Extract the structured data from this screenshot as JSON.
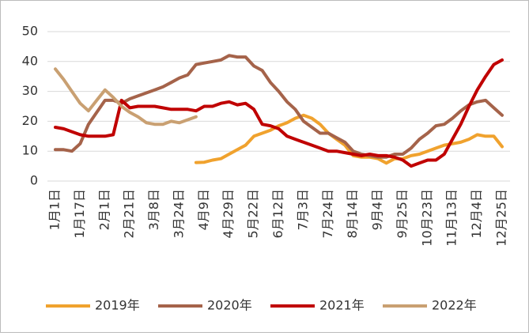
{
  "chart_data": {
    "type": "line",
    "categories": [
      "1月1日",
      null,
      null,
      "1月17日",
      null,
      null,
      "2月1日",
      null,
      null,
      "2月21日",
      null,
      null,
      "3月8日",
      null,
      null,
      "3月24日",
      null,
      null,
      "4月9日",
      null,
      null,
      "4月29日",
      null,
      null,
      "5月22日",
      null,
      null,
      "6月12日",
      null,
      null,
      "7月3日",
      null,
      null,
      "7月24日",
      null,
      null,
      "8月14日",
      null,
      null,
      "9月4日",
      null,
      null,
      "9月25日",
      null,
      null,
      "10月23日",
      null,
      null,
      "11月13日",
      null,
      null,
      "12月4日",
      null,
      null,
      "12月25日"
    ],
    "series": [
      {
        "name": "2019年",
        "color": "#f0a22e",
        "values": [
          null,
          null,
          null,
          null,
          null,
          null,
          null,
          null,
          null,
          null,
          null,
          null,
          null,
          null,
          null,
          null,
          null,
          6.2,
          6.3,
          7,
          7.5,
          9,
          10.5,
          12,
          15,
          16,
          17,
          18.5,
          19.5,
          21,
          22,
          21,
          19,
          16,
          14,
          12,
          8.5,
          8,
          8,
          7.5,
          6,
          7.5,
          7.5,
          8.5,
          9,
          10,
          11,
          12,
          12.5,
          13,
          14,
          15.5,
          15,
          15,
          11.5
        ]
      },
      {
        "name": "2020年",
        "color": "#a5634a",
        "values": [
          10.5,
          10.5,
          10,
          12.5,
          19,
          23,
          27,
          27,
          26,
          27.5,
          28.5,
          29.5,
          30.5,
          31.5,
          33,
          34.5,
          35.5,
          39,
          39.5,
          40,
          40.5,
          42,
          41.5,
          41.5,
          38.5,
          37,
          33,
          30,
          26.5,
          24,
          20,
          18,
          16,
          16,
          14.5,
          13,
          10,
          9,
          8.5,
          8,
          8,
          9,
          9,
          11,
          14,
          16,
          18.5,
          19,
          21,
          23.5,
          25.5,
          26.5,
          27,
          24.5,
          22
        ]
      },
      {
        "name": "2021年",
        "color": "#c00000",
        "values": [
          18,
          17.5,
          16.5,
          15.5,
          15,
          15,
          15,
          15.5,
          27,
          24.5,
          25,
          25,
          25,
          24.5,
          24,
          24,
          24,
          23.5,
          25,
          25,
          26,
          26.5,
          25.5,
          26,
          24,
          19,
          18.5,
          17.5,
          15,
          14,
          13,
          12,
          11,
          10,
          10,
          9.5,
          9,
          8.5,
          9,
          8.5,
          8.5,
          8,
          7,
          5,
          6,
          7,
          7,
          9,
          14,
          19,
          25,
          30.5,
          35,
          39,
          40.5
        ]
      },
      {
        "name": "2022年",
        "color": "#c9a072",
        "values": [
          37.5,
          34,
          30,
          26,
          23.5,
          27,
          30.5,
          28,
          25,
          23,
          21.5,
          19.5,
          19,
          19,
          20,
          19.5,
          20.5,
          21.5,
          null,
          null,
          null,
          null,
          null,
          null,
          null,
          null,
          null,
          null,
          null,
          null,
          null,
          null,
          null,
          null,
          null,
          null,
          null,
          null,
          null,
          null,
          null,
          null,
          null,
          null,
          null,
          null,
          null,
          null,
          null,
          null,
          null,
          null,
          null,
          null,
          null
        ]
      }
    ],
    "ylim": [
      0,
      50
    ],
    "yticks": [
      0,
      10,
      20,
      30,
      40,
      50
    ],
    "grid": true,
    "legend": "bottom"
  }
}
